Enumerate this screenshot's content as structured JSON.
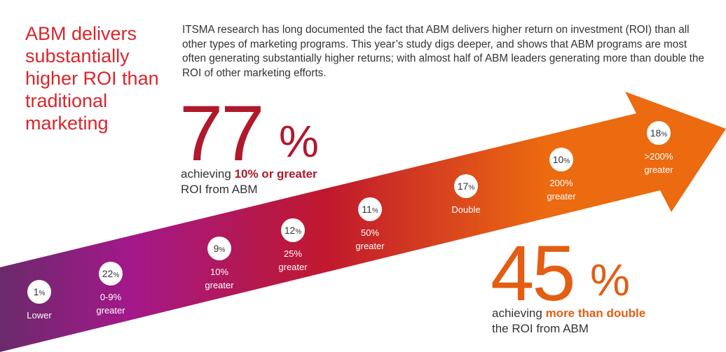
{
  "headline": "ABM delivers substantially higher ROI than traditional marketing",
  "intro": "ITSMA research has long documented the fact that ABM delivers higher return on investment (ROI) than all other types of marketing programs. This year’s study digs deeper, and shows that ABM programs are most often generating substantially higher returns; with almost half of ABM leaders generating more than double the ROI of other marketing efforts.",
  "stat_left": {
    "number": "77",
    "percent": "%",
    "line1_prefix": "achieving ",
    "line1_highlight": "10% or greater",
    "line2": "ROI from ABM"
  },
  "stat_right": {
    "number": "45",
    "percent": "%",
    "line1_prefix": "achieving ",
    "line1_highlight": "more than double",
    "line2": "the ROI from ABM"
  },
  "colors": {
    "headline": "#d8262c",
    "dark_red": "#b0182c",
    "orange": "#e35d13",
    "arrow_start": "#6b2a6b",
    "arrow_mid_magenta": "#a3188a",
    "arrow_red": "#c0182d",
    "arrow_end": "#ec6a10"
  },
  "chart_data": {
    "type": "bar",
    "title": "ROI from ABM",
    "categories": [
      "Lower",
      "0-9% greater",
      "10% greater",
      "25% greater",
      "50% greater",
      "Double",
      "200% greater",
      ">200% greater"
    ],
    "values": [
      1,
      22,
      9,
      12,
      11,
      17,
      10,
      18
    ],
    "value_suffix": "%",
    "points": [
      {
        "num": "1",
        "unit": "%",
        "label1": "Lower",
        "label2": ""
      },
      {
        "num": "22",
        "unit": "%",
        "label1": "0-9%",
        "label2": "greater"
      },
      {
        "num": "9",
        "unit": "%",
        "label1": "10%",
        "label2": "greater"
      },
      {
        "num": "12",
        "unit": "%",
        "label1": "25%",
        "label2": "greater"
      },
      {
        "num": "11",
        "unit": "%",
        "label1": "50%",
        "label2": "greater"
      },
      {
        "num": "17",
        "unit": "%",
        "label1": "Double",
        "label2": ""
      },
      {
        "num": "10",
        "unit": "%",
        "label1": "200%",
        "label2": "greater"
      },
      {
        "num": "18",
        "unit": "%",
        "label1": ">200%",
        "label2": "greater"
      }
    ]
  }
}
